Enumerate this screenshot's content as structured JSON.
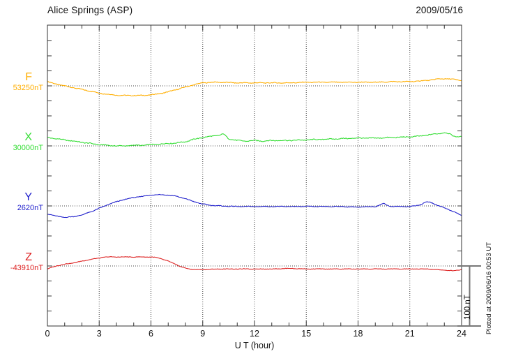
{
  "header": {
    "title": "Alice Springs (ASP)",
    "date": "2009/05/16"
  },
  "side_note": "Plotted at 2009/06/16 00:53 UT",
  "chart_data": {
    "type": "line",
    "title": "Alice Springs (ASP)",
    "date": "2009/05/16",
    "xlabel": "U T (hour)",
    "x_range": [
      0,
      24
    ],
    "x_ticks": [
      0,
      3,
      6,
      9,
      12,
      15,
      18,
      21,
      24
    ],
    "x_minor_tick_step_hours": 1,
    "grid": "dotted vertical lines every 3 hours; dotted horizontal baseline for each trace",
    "legend_position": "left of each trace baseline",
    "scale_bar": {
      "label": "100 nT",
      "nT": 100
    },
    "units": "points are [hour UT, nT offset from trace baseline]",
    "series": [
      {
        "name": "F",
        "baseline_label": "53250nT",
        "baseline_nT": 53250,
        "color": "#FFAE00",
        "points": [
          [
            0,
            7
          ],
          [
            0.5,
            3
          ],
          [
            1,
            0
          ],
          [
            1.5,
            -3
          ],
          [
            2,
            -6
          ],
          [
            2.5,
            -9
          ],
          [
            3,
            -12
          ],
          [
            3.5,
            -14
          ],
          [
            4,
            -15.5
          ],
          [
            4.5,
            -16
          ],
          [
            5,
            -16
          ],
          [
            5.5,
            -16
          ],
          [
            6,
            -15
          ],
          [
            6.5,
            -13
          ],
          [
            7,
            -10
          ],
          [
            7.5,
            -6
          ],
          [
            8,
            -2
          ],
          [
            8.5,
            2
          ],
          [
            9,
            5
          ],
          [
            9.5,
            6
          ],
          [
            10,
            6
          ],
          [
            10.5,
            5.5
          ],
          [
            11,
            5
          ],
          [
            12,
            5
          ],
          [
            13,
            5
          ],
          [
            14,
            5
          ],
          [
            15,
            6
          ],
          [
            16,
            6
          ],
          [
            17,
            6
          ],
          [
            18,
            6
          ],
          [
            19,
            6
          ],
          [
            20,
            7
          ],
          [
            21,
            7
          ],
          [
            22,
            9
          ],
          [
            22.5,
            11
          ],
          [
            23,
            12
          ],
          [
            23.5,
            11
          ],
          [
            24,
            9
          ]
        ]
      },
      {
        "name": "X",
        "baseline_label": "30000nT",
        "baseline_nT": 30000,
        "color": "#33DD33",
        "points": [
          [
            0,
            14
          ],
          [
            0.5,
            12
          ],
          [
            1,
            10
          ],
          [
            1.5,
            8
          ],
          [
            2,
            6
          ],
          [
            2.5,
            4
          ],
          [
            3,
            2
          ],
          [
            3.5,
            1
          ],
          [
            4,
            0
          ],
          [
            4.5,
            0
          ],
          [
            5,
            1
          ],
          [
            5.5,
            1
          ],
          [
            6,
            2
          ],
          [
            6.5,
            3
          ],
          [
            7,
            4
          ],
          [
            7.5,
            5
          ],
          [
            8,
            7
          ],
          [
            8.5,
            11
          ],
          [
            9,
            14
          ],
          [
            9.5,
            16
          ],
          [
            10,
            18
          ],
          [
            10.2,
            20
          ],
          [
            10.5,
            12
          ],
          [
            11,
            9
          ],
          [
            11.5,
            8
          ],
          [
            12,
            9
          ],
          [
            12.5,
            8
          ],
          [
            13,
            9
          ],
          [
            14,
            9
          ],
          [
            15,
            10
          ],
          [
            16,
            11
          ],
          [
            17,
            12
          ],
          [
            18,
            13
          ],
          [
            19,
            13
          ],
          [
            20,
            14
          ],
          [
            21,
            15
          ],
          [
            21.5,
            16
          ],
          [
            22,
            18
          ],
          [
            22.5,
            20
          ],
          [
            23,
            22
          ],
          [
            23.3,
            20
          ],
          [
            23.6,
            16
          ],
          [
            24,
            15
          ]
        ]
      },
      {
        "name": "Y",
        "baseline_label": "2620nT",
        "baseline_nT": 2620,
        "color": "#2222CC",
        "points": [
          [
            0,
            -13
          ],
          [
            0.5,
            -17
          ],
          [
            1,
            -19
          ],
          [
            1.5,
            -18
          ],
          [
            2,
            -15
          ],
          [
            2.5,
            -10
          ],
          [
            3,
            -4
          ],
          [
            3.5,
            2
          ],
          [
            4,
            7
          ],
          [
            4.5,
            11
          ],
          [
            5,
            14
          ],
          [
            5.5,
            16
          ],
          [
            6,
            18
          ],
          [
            6.5,
            19
          ],
          [
            7,
            18
          ],
          [
            7.5,
            16
          ],
          [
            8,
            12
          ],
          [
            8.5,
            7
          ],
          [
            9,
            3
          ],
          [
            9.5,
            1
          ],
          [
            10,
            0
          ],
          [
            11,
            -1
          ],
          [
            12,
            -1
          ],
          [
            13,
            -1
          ],
          [
            14,
            -1
          ],
          [
            15,
            -1
          ],
          [
            16,
            -1
          ],
          [
            17,
            -1
          ],
          [
            18,
            -2
          ],
          [
            19,
            -1
          ],
          [
            19.5,
            4
          ],
          [
            19.8,
            0
          ],
          [
            20,
            -1
          ],
          [
            21,
            -1
          ],
          [
            21.5,
            1
          ],
          [
            22,
            7
          ],
          [
            22.3,
            5
          ],
          [
            22.6,
            1
          ],
          [
            23,
            -3
          ],
          [
            23.5,
            -9
          ],
          [
            24,
            -16
          ]
        ]
      },
      {
        "name": "Z",
        "baseline_label": "-43910nT",
        "baseline_nT": -43910,
        "color": "#DD2222",
        "points": [
          [
            0,
            -5
          ],
          [
            0.5,
            0
          ],
          [
            1,
            3
          ],
          [
            1.5,
            5
          ],
          [
            2,
            8
          ],
          [
            2.5,
            11
          ],
          [
            3,
            13
          ],
          [
            3.3,
            15
          ],
          [
            4,
            15
          ],
          [
            5,
            15
          ],
          [
            6,
            15
          ],
          [
            6.3,
            14
          ],
          [
            6.6,
            12
          ],
          [
            7,
            8
          ],
          [
            7.4,
            3
          ],
          [
            7.8,
            -2
          ],
          [
            8.2,
            -5
          ],
          [
            8.6,
            -6
          ],
          [
            9,
            -6
          ],
          [
            10,
            -5
          ],
          [
            11,
            -5
          ],
          [
            12,
            -5
          ],
          [
            13,
            -5
          ],
          [
            14,
            -4
          ],
          [
            15,
            -5
          ],
          [
            16,
            -5
          ],
          [
            17,
            -5
          ],
          [
            18,
            -5
          ],
          [
            19,
            -5
          ],
          [
            20,
            -5
          ],
          [
            21,
            -5
          ],
          [
            22,
            -5
          ],
          [
            22.5,
            -6
          ],
          [
            23,
            -7
          ],
          [
            23.5,
            -8
          ],
          [
            24,
            -6
          ]
        ]
      }
    ]
  }
}
